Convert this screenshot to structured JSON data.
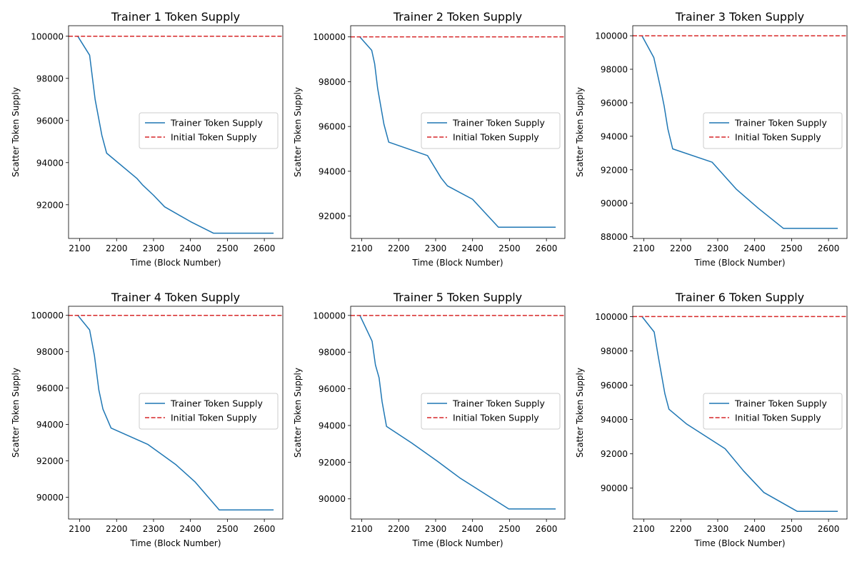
{
  "colors": {
    "trainer_line": "#1f77b4",
    "initial_line": "#d62728"
  },
  "chart_data": [
    {
      "type": "line",
      "title": "Trainer 1 Token Supply",
      "xlabel": "Time (Block Number)",
      "ylabel": "Scatter Token Supply",
      "xlim": [
        2070,
        2650
      ],
      "ylim": [
        90400,
        100500
      ],
      "xticks": [
        2100,
        2200,
        2300,
        2400,
        2500,
        2600
      ],
      "yticks": [
        92000,
        94000,
        96000,
        98000,
        100000
      ],
      "legend": {
        "position": "center-right",
        "entries": [
          "Trainer Token Supply",
          "Initial Token Supply"
        ]
      },
      "grid": false,
      "series": [
        {
          "name": "Trainer Token Supply",
          "style": "solid",
          "color": "#1f77b4",
          "x": [
            2095,
            2127,
            2142,
            2160,
            2173,
            2255,
            2270,
            2300,
            2330,
            2400,
            2462,
            2625
          ],
          "y": [
            100000,
            99100,
            97000,
            95300,
            94450,
            93250,
            92950,
            92450,
            91900,
            91200,
            90650,
            90650
          ]
        },
        {
          "name": "Initial Token Supply",
          "style": "dashed",
          "color": "#d62728",
          "hline": 100000
        }
      ]
    },
    {
      "type": "line",
      "title": "Trainer 2 Token Supply",
      "xlabel": "Time (Block Number)",
      "ylabel": "Scatter Token Supply",
      "xlim": [
        2070,
        2650
      ],
      "ylim": [
        91000,
        100500
      ],
      "xticks": [
        2100,
        2200,
        2300,
        2400,
        2500,
        2600
      ],
      "yticks": [
        92000,
        94000,
        96000,
        98000,
        100000
      ],
      "legend": {
        "position": "center-right",
        "entries": [
          "Trainer Token Supply",
          "Initial Token Supply"
        ]
      },
      "grid": false,
      "series": [
        {
          "name": "Trainer Token Supply",
          "style": "solid",
          "color": "#1f77b4",
          "x": [
            2095,
            2127,
            2135,
            2143,
            2160,
            2173,
            2278,
            2315,
            2332,
            2400,
            2470,
            2625
          ],
          "y": [
            100000,
            99400,
            98800,
            97700,
            96100,
            95300,
            94700,
            93700,
            93350,
            92750,
            91500,
            91500
          ]
        },
        {
          "name": "Initial Token Supply",
          "style": "dashed",
          "color": "#d62728",
          "hline": 100000
        }
      ]
    },
    {
      "type": "line",
      "title": "Trainer 3 Token Supply",
      "xlabel": "Time (Block Number)",
      "ylabel": "Scatter Token Supply",
      "xlim": [
        2070,
        2650
      ],
      "ylim": [
        87900,
        100600
      ],
      "xticks": [
        2100,
        2200,
        2300,
        2400,
        2500,
        2600
      ],
      "yticks": [
        88000,
        90000,
        92000,
        94000,
        96000,
        98000,
        100000
      ],
      "legend": {
        "position": "center-right",
        "entries": [
          "Trainer Token Supply",
          "Initial Token Supply"
        ]
      },
      "grid": false,
      "series": [
        {
          "name": "Trainer Token Supply",
          "style": "solid",
          "color": "#1f77b4",
          "x": [
            2095,
            2127,
            2145,
            2155,
            2165,
            2178,
            2285,
            2350,
            2410,
            2478,
            2625
          ],
          "y": [
            100000,
            98700,
            96900,
            95800,
            94450,
            93250,
            92450,
            90850,
            89700,
            88500,
            88500
          ]
        },
        {
          "name": "Initial Token Supply",
          "style": "dashed",
          "color": "#d62728",
          "hline": 100000
        }
      ]
    },
    {
      "type": "line",
      "title": "Trainer 4 Token Supply",
      "xlabel": "Time (Block Number)",
      "ylabel": "Scatter Token Supply",
      "xlim": [
        2070,
        2650
      ],
      "ylim": [
        88800,
        100500
      ],
      "xticks": [
        2100,
        2200,
        2300,
        2400,
        2500,
        2600
      ],
      "yticks": [
        90000,
        92000,
        94000,
        96000,
        98000,
        100000
      ],
      "legend": {
        "position": "center-right",
        "entries": [
          "Trainer Token Supply",
          "Initial Token Supply"
        ]
      },
      "grid": false,
      "series": [
        {
          "name": "Trainer Token Supply",
          "style": "solid",
          "color": "#1f77b4",
          "x": [
            2095,
            2127,
            2140,
            2152,
            2163,
            2185,
            2285,
            2360,
            2412,
            2478,
            2625
          ],
          "y": [
            100000,
            99200,
            97800,
            95900,
            94850,
            93800,
            92900,
            91800,
            90850,
            89300,
            89300
          ]
        },
        {
          "name": "Initial Token Supply",
          "style": "dashed",
          "color": "#d62728",
          "hline": 100000
        }
      ]
    },
    {
      "type": "line",
      "title": "Trainer 5 Token Supply",
      "xlabel": "Time (Block Number)",
      "ylabel": "Scatter Token Supply",
      "xlim": [
        2070,
        2650
      ],
      "ylim": [
        88900,
        100500
      ],
      "xticks": [
        2100,
        2200,
        2300,
        2400,
        2500,
        2600
      ],
      "yticks": [
        90000,
        92000,
        94000,
        96000,
        98000,
        100000
      ],
      "legend": {
        "position": "center-right",
        "entries": [
          "Trainer Token Supply",
          "Initial Token Supply"
        ]
      },
      "grid": false,
      "series": [
        {
          "name": "Trainer Token Supply",
          "style": "solid",
          "color": "#1f77b4",
          "x": [
            2095,
            2128,
            2137,
            2147,
            2155,
            2167,
            2235,
            2305,
            2365,
            2420,
            2498,
            2625
          ],
          "y": [
            100000,
            98600,
            97300,
            96600,
            95300,
            93950,
            93050,
            92050,
            91150,
            90450,
            89450,
            89450
          ]
        },
        {
          "name": "Initial Token Supply",
          "style": "dashed",
          "color": "#d62728",
          "hline": 100000
        }
      ]
    },
    {
      "type": "line",
      "title": "Trainer 6 Token Supply",
      "xlabel": "Time (Block Number)",
      "ylabel": "Scatter Token Supply",
      "xlim": [
        2070,
        2650
      ],
      "ylim": [
        88200,
        100600
      ],
      "xticks": [
        2100,
        2200,
        2300,
        2400,
        2500,
        2600
      ],
      "yticks": [
        90000,
        92000,
        94000,
        96000,
        98000,
        100000
      ],
      "legend": {
        "position": "center-right",
        "entries": [
          "Trainer Token Supply",
          "Initial Token Supply"
        ]
      },
      "grid": false,
      "series": [
        {
          "name": "Trainer Token Supply",
          "style": "solid",
          "color": "#1f77b4",
          "x": [
            2095,
            2128,
            2138,
            2148,
            2157,
            2168,
            2215,
            2320,
            2370,
            2425,
            2515,
            2625
          ],
          "y": [
            100000,
            99100,
            97800,
            96600,
            95500,
            94600,
            93750,
            92300,
            91000,
            89750,
            88650,
            88650
          ]
        },
        {
          "name": "Initial Token Supply",
          "style": "dashed",
          "color": "#d62728",
          "hline": 100000
        }
      ]
    }
  ]
}
